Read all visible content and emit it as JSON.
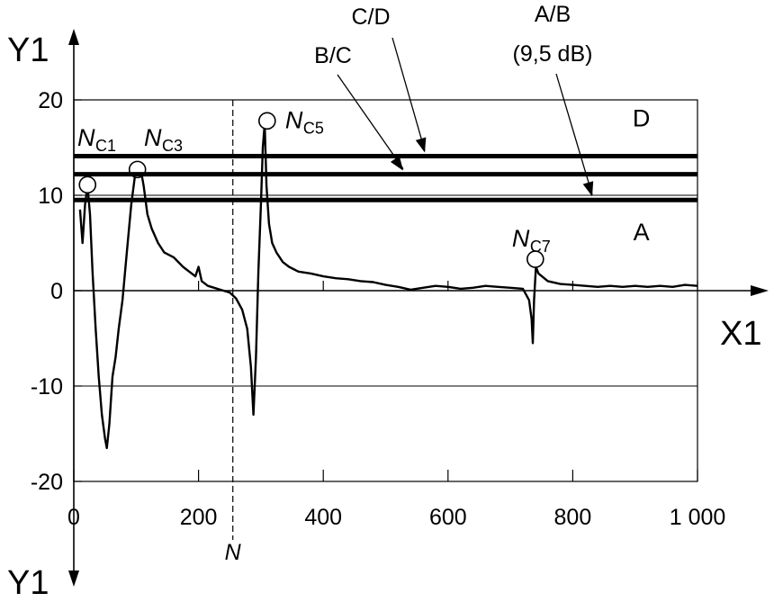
{
  "chart_data": {
    "type": "line",
    "xlabel": "X1",
    "ylabel_top": "Y1",
    "ylabel_bottom": "Y1",
    "xlim": [
      0,
      1000
    ],
    "ylim": [
      -20,
      20
    ],
    "x_ticks": [
      0,
      200,
      400,
      600,
      800,
      1000
    ],
    "x_tick_labels": [
      "0",
      "200",
      "400",
      "600",
      "800",
      "1 000"
    ],
    "y_ticks": [
      -20,
      -10,
      0,
      10,
      20
    ],
    "y_tick_labels": [
      "-20",
      "-10",
      "0",
      "10",
      "20"
    ],
    "grid_y": true,
    "vertical_marker": {
      "x": 255,
      "label": "N"
    },
    "thresholds": [
      {
        "label": "A/B",
        "sublabel": "(9,5 dB)",
        "y": 9.5
      },
      {
        "label": "B/C",
        "sublabel": "",
        "y": 12.2
      },
      {
        "label": "C/D",
        "sublabel": "",
        "y": 14.1
      }
    ],
    "zones": [
      {
        "label": "D",
        "x": 910,
        "y": 17.2
      },
      {
        "label": "A",
        "x": 910,
        "y": 5.3
      }
    ],
    "markers": [
      {
        "italic": "N",
        "sub": "C1",
        "x": 22,
        "y": 11.1
      },
      {
        "italic": "N",
        "sub": "C3",
        "x": 102,
        "y": 12.7
      },
      {
        "italic": "N",
        "sub": "C5",
        "x": 310,
        "y": 17.8
      },
      {
        "italic": "N",
        "sub": "C7",
        "x": 740,
        "y": 3.3
      }
    ],
    "series": [
      {
        "values": [
          [
            10,
            8.5
          ],
          [
            14,
            5
          ],
          [
            18,
            9
          ],
          [
            22,
            11
          ],
          [
            26,
            8
          ],
          [
            30,
            2
          ],
          [
            35,
            -4
          ],
          [
            40,
            -9
          ],
          [
            45,
            -13
          ],
          [
            50,
            -15.5
          ],
          [
            53,
            -16.5
          ],
          [
            57,
            -14
          ],
          [
            62,
            -9
          ],
          [
            67,
            -7
          ],
          [
            72,
            -4
          ],
          [
            78,
            -1
          ],
          [
            85,
            4
          ],
          [
            92,
            9
          ],
          [
            98,
            12
          ],
          [
            103,
            12.7
          ],
          [
            108,
            12.5
          ],
          [
            112,
            11
          ],
          [
            118,
            8
          ],
          [
            125,
            6.5
          ],
          [
            135,
            5
          ],
          [
            145,
            4
          ],
          [
            160,
            3.5
          ],
          [
            175,
            2.5
          ],
          [
            185,
            2
          ],
          [
            195,
            1.5
          ],
          [
            200,
            2.5
          ],
          [
            205,
            1
          ],
          [
            215,
            0.5
          ],
          [
            225,
            0.3
          ],
          [
            240,
            0
          ],
          [
            250,
            -0.2
          ],
          [
            255,
            -0.5
          ],
          [
            260,
            -0.8
          ],
          [
            270,
            -2
          ],
          [
            278,
            -4
          ],
          [
            284,
            -8
          ],
          [
            288,
            -13
          ],
          [
            292,
            -7
          ],
          [
            296,
            2
          ],
          [
            300,
            9
          ],
          [
            303,
            15
          ],
          [
            306,
            17.5
          ],
          [
            309,
            11
          ],
          [
            313,
            7
          ],
          [
            318,
            5
          ],
          [
            325,
            4
          ],
          [
            335,
            3
          ],
          [
            345,
            2.5
          ],
          [
            360,
            2
          ],
          [
            380,
            1.8
          ],
          [
            400,
            1.5
          ],
          [
            420,
            1.3
          ],
          [
            440,
            1.2
          ],
          [
            460,
            1
          ],
          [
            480,
            0.9
          ],
          [
            500,
            0.6
          ],
          [
            520,
            0.4
          ],
          [
            540,
            0.1
          ],
          [
            560,
            0.3
          ],
          [
            580,
            0.5
          ],
          [
            600,
            0.4
          ],
          [
            620,
            0.2
          ],
          [
            640,
            0.3
          ],
          [
            660,
            0.5
          ],
          [
            680,
            0.4
          ],
          [
            700,
            0.3
          ],
          [
            720,
            0.2
          ],
          [
            730,
            -1
          ],
          [
            734,
            -3
          ],
          [
            736,
            -5.5
          ],
          [
            738,
            -1
          ],
          [
            741,
            2.5
          ],
          [
            745,
            1.8
          ],
          [
            760,
            1
          ],
          [
            780,
            0.7
          ],
          [
            800,
            0.6
          ],
          [
            820,
            0.5
          ],
          [
            840,
            0.4
          ],
          [
            860,
            0.5
          ],
          [
            880,
            0.4
          ],
          [
            900,
            0.5
          ],
          [
            920,
            0.4
          ],
          [
            940,
            0.5
          ],
          [
            960,
            0.4
          ],
          [
            980,
            0.6
          ],
          [
            1000,
            0.5
          ]
        ]
      }
    ]
  }
}
